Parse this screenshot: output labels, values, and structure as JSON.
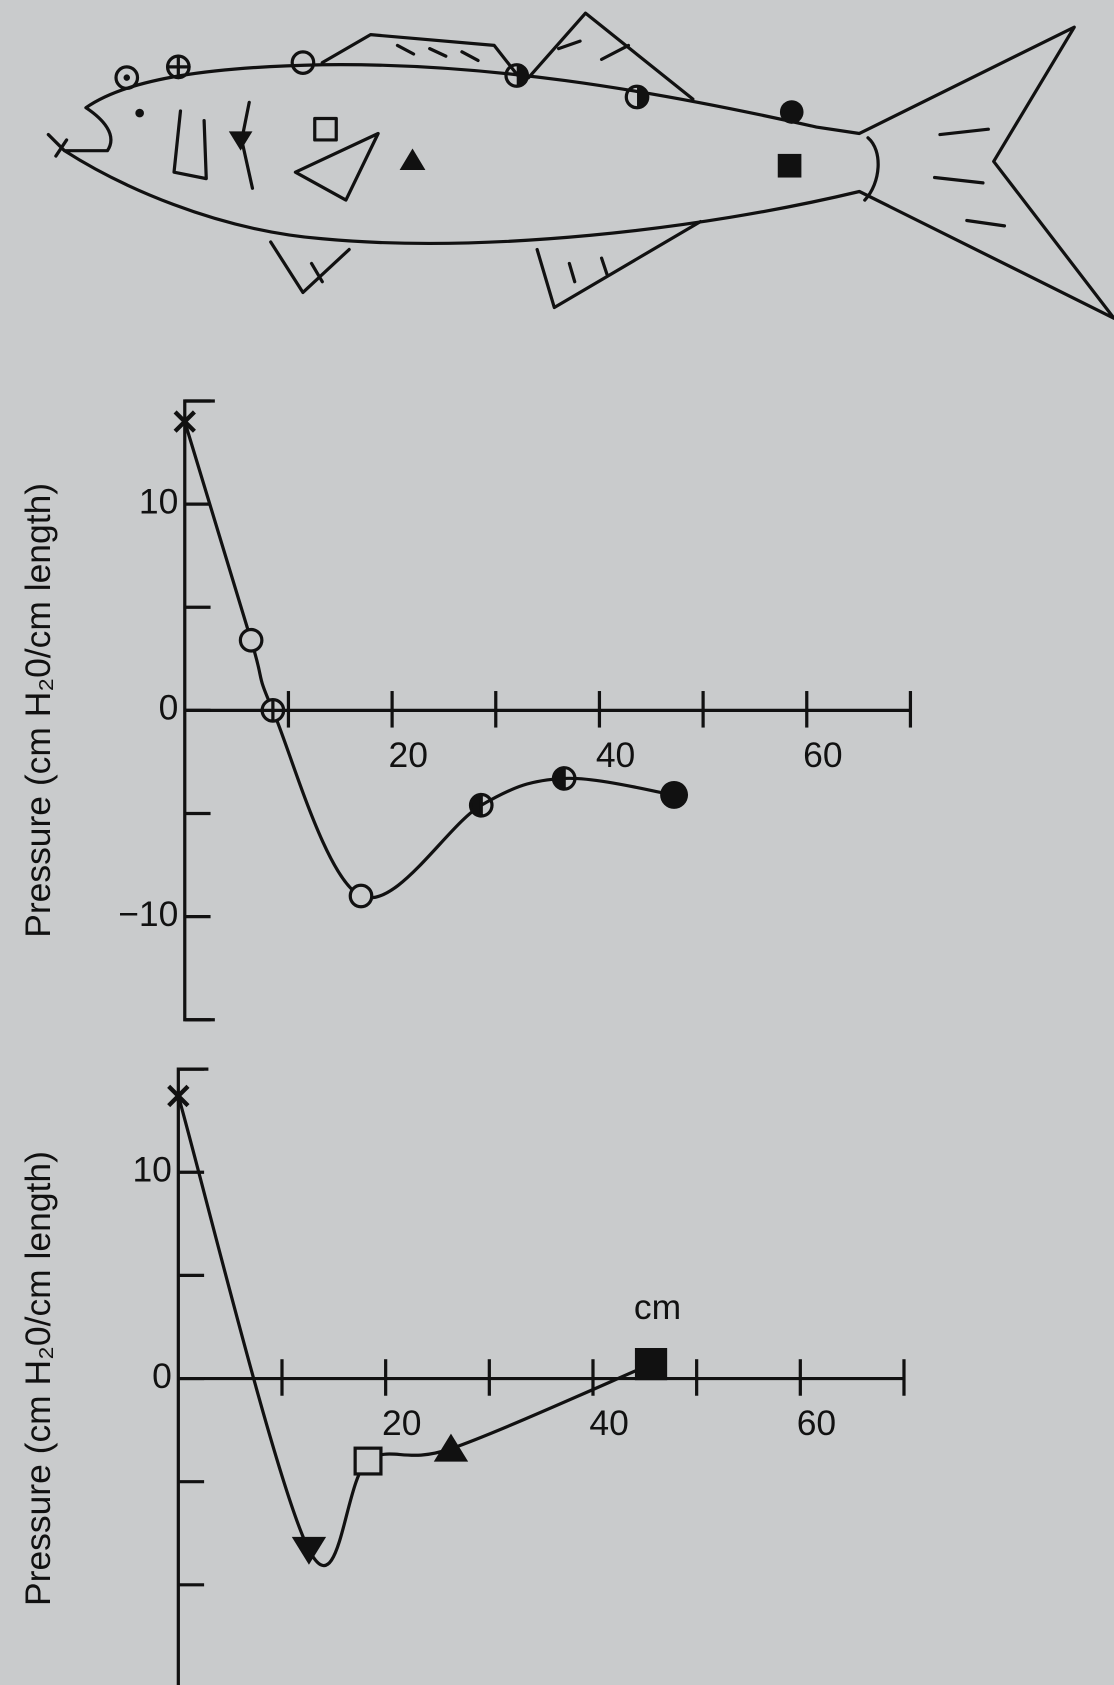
{
  "chart_data": [
    {
      "type": "line",
      "ylabel": "Pressure (cm H₂0/cm length)",
      "x": [
        0,
        6.4,
        8.5,
        17,
        28.6,
        36.6,
        47.2
      ],
      "series": [
        {
          "color": "#111111",
          "values": [
            14,
            3.4,
            0,
            -9,
            -4.6,
            -3.3,
            -4.1
          ],
          "markers": [
            "x",
            "open-circle",
            "crossed-circle",
            "open-circle",
            "half-circle",
            "half-circle",
            "filled-circle"
          ]
        }
      ],
      "xlim": [
        0,
        70
      ],
      "xticks": [
        20,
        40,
        60
      ],
      "minor_xticks": [
        10,
        30,
        50,
        70
      ],
      "ylim": [
        -15,
        15
      ],
      "yticks": [
        10,
        0,
        {
          "value": -10,
          "label": "−10"
        }
      ],
      "minor_yticks": [
        -15,
        -5,
        5,
        15
      ]
    },
    {
      "type": "line",
      "ylabel": "Pressure (cm H₂0/cm length)",
      "xlabel": "cm",
      "x": [
        0,
        12.6,
        18.3,
        26.3,
        45.6
      ],
      "series": [
        {
          "color": "#111111",
          "values": [
            13.7,
            -8.3,
            -4,
            -3.4,
            0.7
          ],
          "markers": [
            "x",
            "filled-triangle-down",
            "open-square",
            "filled-triangle-up",
            "filled-square"
          ]
        }
      ],
      "xlim": [
        0,
        70
      ],
      "xticks": [
        20,
        40,
        60
      ],
      "minor_xticks": [
        10,
        30,
        50,
        70
      ],
      "ylim": [
        -15,
        15
      ],
      "yticks": [
        10,
        0
      ],
      "minor_yticks": [
        -15,
        -10,
        -5,
        5,
        15
      ]
    }
  ]
}
